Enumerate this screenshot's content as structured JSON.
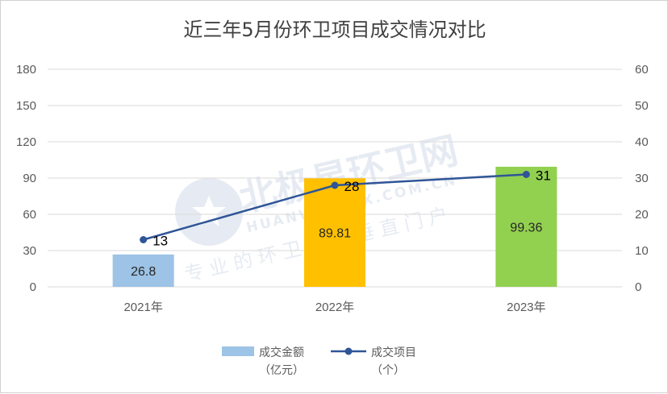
{
  "chart_data": {
    "type": "bar",
    "title": "近三年5月份环卫项目成交情况对比",
    "categories": [
      "2021年",
      "2022年",
      "2023年"
    ],
    "series": [
      {
        "name": "成交金额\n（亿元）",
        "kind": "bar",
        "axis": "left",
        "values": [
          26.8,
          89.81,
          99.36
        ],
        "labels": [
          "26.8",
          "89.81",
          "99.36"
        ],
        "colors": [
          "#9dc3e6",
          "#ffc000",
          "#92d050"
        ]
      },
      {
        "name": "成交项目\n（个）",
        "kind": "line",
        "axis": "right",
        "values": [
          13,
          28,
          31
        ],
        "labels": [
          "13",
          "28",
          "31"
        ],
        "color": "#2f5597"
      }
    ],
    "y_left": {
      "min": 0,
      "max": 180,
      "ticks": [
        "0",
        "30",
        "60",
        "90",
        "120",
        "150",
        "180"
      ]
    },
    "y_right": {
      "min": 0,
      "max": 60,
      "ticks": [
        "0",
        "10",
        "20",
        "30",
        "40",
        "50",
        "60"
      ]
    },
    "grid": true,
    "legend_position": "bottom"
  },
  "legend": {
    "bar_line1": "成交金额",
    "bar_line2": "（亿元）",
    "line_line1": "成交项目",
    "line_line2": "（个）"
  },
  "watermark": {
    "brand": "北极星环卫网",
    "domain": "HUANWEI.BJX.COM.CN",
    "slogan": "专业的环卫行业垂直门户"
  }
}
